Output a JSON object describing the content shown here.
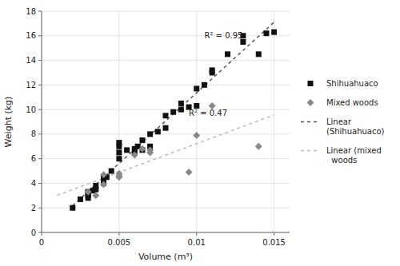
{
  "chart_data": {
    "type": "scatter",
    "x_label": "Volume (m³)",
    "y_label": "Weight (kg)",
    "xlim": [
      0,
      0.016
    ],
    "ylim": [
      0,
      18
    ],
    "xticks": [
      0,
      0.005,
      0.01,
      0.015
    ],
    "yticks": [
      0,
      2,
      4,
      6,
      8,
      10,
      12,
      14,
      16,
      18
    ],
    "grid": true,
    "legend": "right",
    "series": [
      {
        "name": "Shihuahuaco",
        "type": "scatter",
        "marker": "square",
        "color": "#111111",
        "x": [
          0.002,
          0.0025,
          0.003,
          0.003,
          0.003,
          0.003,
          0.0033,
          0.0035,
          0.0035,
          0.004,
          0.004,
          0.004,
          0.004,
          0.0042,
          0.0045,
          0.005,
          0.005,
          0.005,
          0.005,
          0.0055,
          0.006,
          0.006,
          0.0062,
          0.0065,
          0.0065,
          0.007,
          0.007,
          0.0075,
          0.008,
          0.008,
          0.0085,
          0.009,
          0.009,
          0.0095,
          0.01,
          0.01,
          0.0105,
          0.011,
          0.011,
          0.012,
          0.013,
          0.013,
          0.014,
          0.0145,
          0.015
        ],
        "values": [
          2.0,
          2.7,
          2.8,
          3.0,
          3.2,
          3.3,
          3.4,
          3.5,
          3.8,
          4.0,
          4.2,
          4.3,
          4.5,
          4.5,
          5.0,
          6.0,
          6.5,
          7.0,
          7.3,
          6.7,
          6.5,
          6.8,
          7.0,
          6.7,
          7.5,
          7.0,
          8.0,
          8.2,
          8.5,
          9.5,
          9.8,
          10.0,
          10.5,
          10.2,
          10.3,
          11.7,
          12.0,
          13.0,
          13.2,
          14.5,
          15.5,
          16.0,
          14.5,
          16.2,
          16.3
        ]
      },
      {
        "name": "Mixed woods",
        "type": "scatter",
        "marker": "diamond",
        "color": "#888888",
        "x": [
          0.003,
          0.0035,
          0.004,
          0.004,
          0.005,
          0.005,
          0.005,
          0.006,
          0.0065,
          0.007,
          0.007,
          0.0095,
          0.01,
          0.011,
          0.014
        ],
        "values": [
          3.3,
          3.0,
          3.9,
          4.7,
          4.6,
          4.5,
          4.8,
          6.3,
          6.8,
          6.7,
          6.5,
          4.9,
          7.9,
          10.3,
          7.0
        ]
      },
      {
        "name": "Linear\n(Shihuahuaco)",
        "type": "line",
        "line_style": "dashed",
        "color": "#555555",
        "x": [
          0.002,
          0.015
        ],
        "values": [
          2.175,
          17.105
        ]
      },
      {
        "name": "Linear (mixed\n  woods",
        "type": "line",
        "line_style": "dashed",
        "color": "#bbbbbb",
        "x": [
          0.001,
          0.015
        ],
        "values": [
          3.015,
          9.561
        ]
      }
    ],
    "annotations": [
      {
        "text": "R² = 0.95",
        "x": 0.0105,
        "y": 15.8
      },
      {
        "text": "R² = 0.47",
        "x": 0.0095,
        "y": 9.5
      }
    ]
  }
}
